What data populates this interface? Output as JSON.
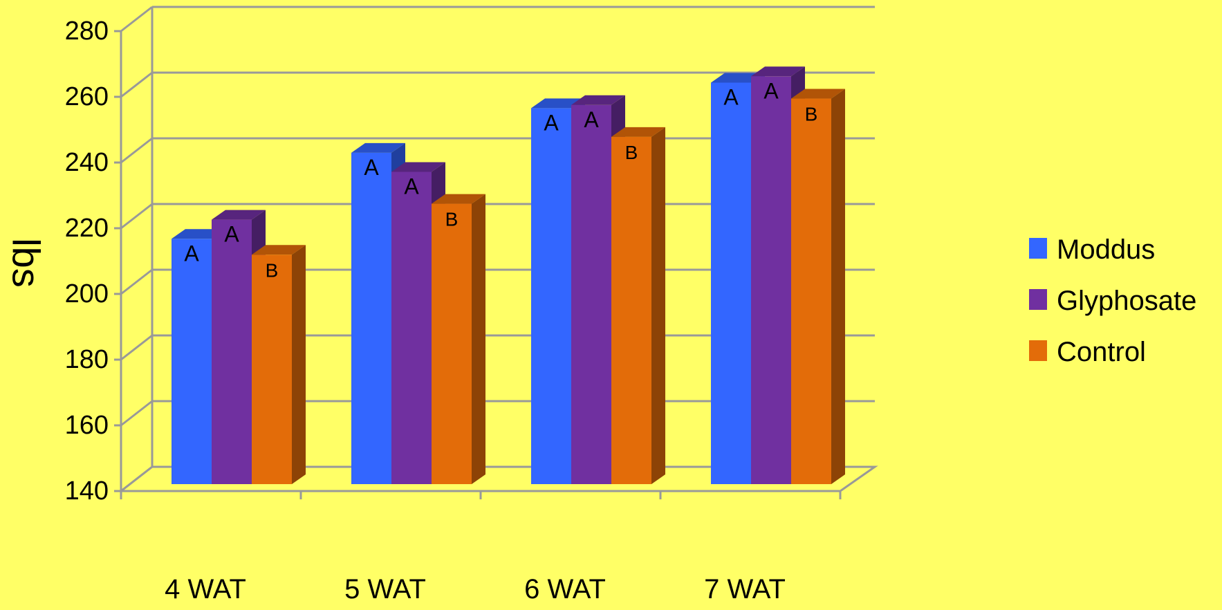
{
  "chart_data": {
    "type": "bar",
    "title": "",
    "xlabel": "",
    "ylabel": "lbs",
    "ylim": [
      140,
      280
    ],
    "ytick_step": 20,
    "grid": true,
    "legend_position": "right",
    "categories": [
      "4 WAT",
      "5 WAT",
      "6 WAT",
      "7 WAT"
    ],
    "series": [
      {
        "name": "Moddus",
        "color": "#3366FF",
        "values": [
          217,
          244,
          258,
          266
        ],
        "labels": [
          "A",
          "A",
          "A",
          "A"
        ]
      },
      {
        "name": "Glyphosate",
        "color": "#7030A0",
        "values": [
          223,
          238,
          259,
          268
        ],
        "labels": [
          "A",
          "A",
          "A",
          "A"
        ]
      },
      {
        "name": "Control",
        "color": "#E36C09",
        "values": [
          212,
          228,
          249,
          261
        ],
        "labels": [
          "B",
          "B",
          "B",
          "B"
        ]
      }
    ]
  }
}
